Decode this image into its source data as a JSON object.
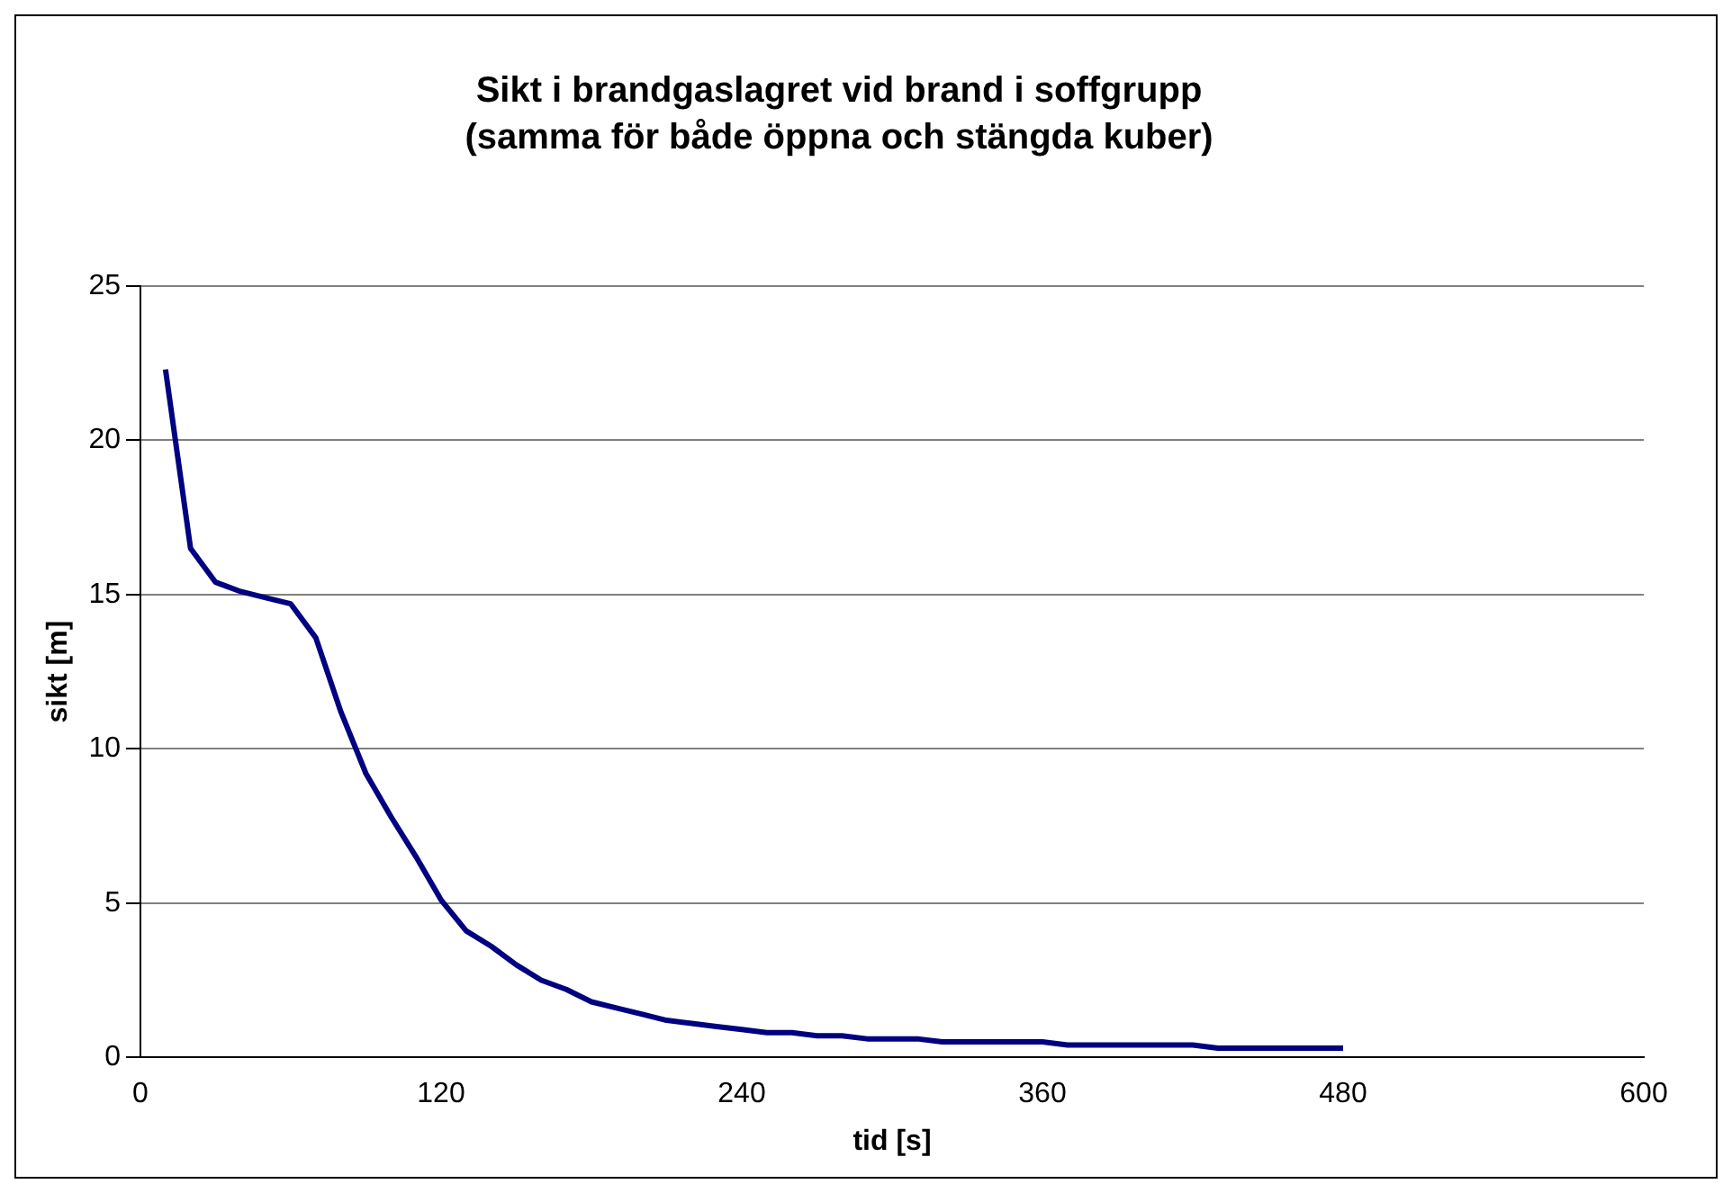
{
  "chart_data": {
    "type": "line",
    "title": "Sikt i brandgaslagret vid brand i soffgrupp",
    "subtitle": "(samma för både öppna och stängda kuber)",
    "xlabel": "tid [s]",
    "ylabel": "sikt [m]",
    "x": [
      10,
      20,
      30,
      40,
      50,
      60,
      70,
      80,
      90,
      100,
      110,
      120,
      130,
      140,
      150,
      160,
      170,
      180,
      190,
      200,
      210,
      220,
      230,
      240,
      250,
      260,
      270,
      280,
      290,
      300,
      310,
      320,
      340,
      360,
      370,
      400,
      420,
      430,
      460,
      480
    ],
    "series": [
      {
        "color": "#000080",
        "values": [
          22.3,
          16.5,
          15.4,
          15.1,
          14.9,
          14.7,
          13.6,
          11.2,
          9.2,
          7.8,
          6.5,
          5.1,
          4.1,
          3.6,
          3.0,
          2.5,
          2.2,
          1.8,
          1.6,
          1.4,
          1.2,
          1.1,
          1.0,
          0.9,
          0.8,
          0.8,
          0.7,
          0.7,
          0.6,
          0.6,
          0.6,
          0.5,
          0.5,
          0.5,
          0.4,
          0.4,
          0.4,
          0.3,
          0.3,
          0.3
        ]
      }
    ],
    "xlim": [
      0,
      600
    ],
    "xticks": [
      0,
      120,
      240,
      360,
      480,
      600
    ],
    "ylim": [
      0,
      25
    ],
    "yticks": [
      0,
      5,
      10,
      15,
      20,
      25
    ],
    "grid": "y",
    "legend": false,
    "marker": "none",
    "line_style": "solid"
  }
}
